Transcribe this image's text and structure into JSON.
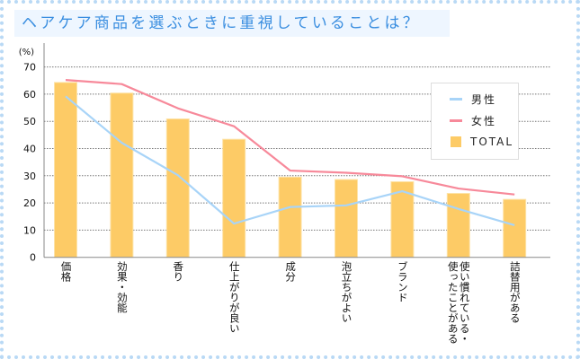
{
  "title": "ヘアケア商品を選ぶときに重視していることは？",
  "chart_data": {
    "type": "bar+line",
    "title": "ヘアケア商品を選ぶときに重視していることは？",
    "ylabel": "(%)",
    "ylim": [
      0,
      70
    ],
    "yticks": [
      "0",
      "10",
      "20",
      "30",
      "40",
      "50",
      "60",
      "70"
    ],
    "grid": true,
    "legend_position": "top-right",
    "categories": [
      "価格",
      "効果・効能",
      "香り",
      "仕上がりが良い",
      "成分",
      "泡立ちがよい",
      "ブランド",
      "使い慣れている・\n使ったことがある",
      "詰替用がある"
    ],
    "series": [
      {
        "name": "男性",
        "type": "line",
        "color": "#a8d4f8",
        "values": [
          59.2,
          42.1,
          30.2,
          12.4,
          18.5,
          19.1,
          24.3,
          17.8,
          11.8
        ]
      },
      {
        "name": "女性",
        "type": "line",
        "color": "#f7899a",
        "values": [
          65.2,
          63.7,
          54.8,
          48.2,
          31.9,
          31.1,
          29.8,
          25.3,
          23.1
        ]
      },
      {
        "name": "TOTAL",
        "type": "bar",
        "color": "#fdcb66",
        "values": [
          64.3,
          60.4,
          50.9,
          43.4,
          29.5,
          28.6,
          27.8,
          23.5,
          21.3
        ]
      }
    ]
  }
}
